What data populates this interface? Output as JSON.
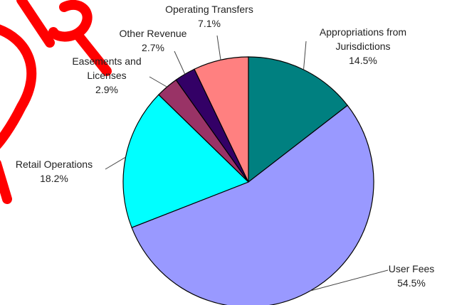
{
  "chart_data": {
    "type": "pie",
    "categories": [
      "Appropriations from\nJurisdictions",
      "User Fees",
      "Retail Operations",
      "Easements and\nLicenses",
      "Other Revenue",
      "Operating Transfers"
    ],
    "values": [
      14.5,
      54.5,
      18.2,
      2.9,
      2.7,
      7.1
    ],
    "value_labels": [
      "14.5%",
      "54.5%",
      "18.2%",
      "2.9%",
      "2.7%",
      "7.1%"
    ],
    "colors": [
      "#008080",
      "#9999ff",
      "#00ffff",
      "#993366",
      "#330066",
      "#ff8080"
    ]
  }
}
